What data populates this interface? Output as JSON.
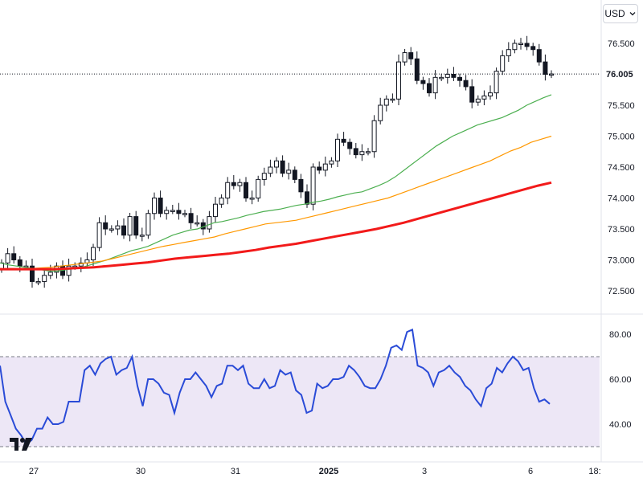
{
  "toolbar": {
    "currency_label": "USD"
  },
  "chart_data": [
    {
      "type": "candlestick",
      "title": "",
      "y_axis_ticks": [
        "76.500",
        "76.000",
        "75.500",
        "75.000",
        "74.500",
        "74.000",
        "73.500",
        "73.000",
        "72.500"
      ],
      "ylim": [
        72.2,
        77.0
      ],
      "x_axis_ticks": [
        "27",
        "30",
        "31",
        "2025",
        "3",
        "6",
        "18:"
      ],
      "last_price": 76.005,
      "last_price_label": "76.005",
      "grid": true,
      "close_series": [
        72.95,
        73.1,
        73.0,
        72.9,
        72.9,
        72.65,
        72.65,
        72.75,
        72.8,
        72.9,
        72.75,
        72.9,
        72.9,
        72.95,
        73.0,
        73.2,
        73.6,
        73.5,
        73.5,
        73.55,
        73.4,
        73.7,
        73.4,
        73.4,
        73.75,
        74.0,
        73.75,
        73.8,
        73.8,
        73.75,
        73.75,
        73.6,
        73.6,
        73.5,
        73.7,
        73.9,
        74.0,
        74.25,
        74.2,
        74.25,
        74.0,
        74.0,
        74.3,
        74.4,
        74.5,
        74.6,
        74.4,
        74.45,
        74.3,
        74.1,
        73.9,
        74.5,
        74.45,
        74.55,
        74.6,
        74.95,
        74.9,
        74.8,
        74.7,
        74.75,
        74.75,
        75.25,
        75.5,
        75.6,
        75.6,
        76.2,
        76.35,
        76.25,
        75.9,
        75.85,
        75.7,
        75.95,
        75.95,
        76.0,
        75.95,
        75.9,
        75.8,
        75.55,
        75.6,
        75.65,
        75.7,
        76.05,
        76.3,
        76.4,
        76.5,
        76.5,
        76.45,
        76.4,
        76.2,
        76.0,
        76.005
      ],
      "series": [
        {
          "name": "",
          "color": "#4caf50",
          "values": [
            72.95,
            72.92,
            72.9,
            72.88,
            72.86,
            72.84,
            72.82,
            72.82,
            72.84,
            72.86,
            72.88,
            72.92,
            72.96,
            73.0,
            73.05,
            73.1,
            73.15,
            73.18,
            73.22,
            73.28,
            73.34,
            73.4,
            73.44,
            73.48,
            73.5,
            73.55,
            73.6,
            73.62,
            73.65,
            73.68,
            73.72,
            73.75,
            73.78,
            73.8,
            73.82,
            73.85,
            73.88,
            73.9,
            73.93,
            73.95,
            73.98,
            74.02,
            74.05,
            74.08,
            74.1,
            74.15,
            74.2,
            74.26,
            74.34,
            74.44,
            74.54,
            74.64,
            74.74,
            74.84,
            74.92,
            75.0,
            75.06,
            75.12,
            75.18,
            75.22,
            75.26,
            75.3,
            75.36,
            75.42,
            75.5,
            75.56,
            75.62,
            75.67
          ]
        },
        {
          "name": "",
          "color": "#ff9800",
          "values": [
            72.86,
            72.86,
            72.86,
            72.86,
            72.87,
            72.88,
            72.9,
            72.92,
            72.94,
            72.96,
            72.98,
            73.02,
            73.06,
            73.1,
            73.14,
            73.18,
            73.22,
            73.25,
            73.28,
            73.31,
            73.34,
            73.37,
            73.42,
            73.46,
            73.5,
            73.54,
            73.58,
            73.6,
            73.62,
            73.64,
            73.68,
            73.72,
            73.76,
            73.8,
            73.84,
            73.88,
            73.92,
            73.96,
            74.0,
            74.06,
            74.12,
            74.18,
            74.24,
            74.3,
            74.36,
            74.42,
            74.48,
            74.54,
            74.6,
            74.68,
            74.76,
            74.82,
            74.9,
            74.95,
            75.0
          ]
        },
        {
          "name": "",
          "color": "#f21a1a",
          "values": [
            72.85,
            72.85,
            72.85,
            72.85,
            72.85,
            72.86,
            72.87,
            72.88,
            72.9,
            72.92,
            72.94,
            72.96,
            72.99,
            73.02,
            73.04,
            73.06,
            73.08,
            73.1,
            73.13,
            73.16,
            73.2,
            73.23,
            73.26,
            73.3,
            73.34,
            73.38,
            73.42,
            73.46,
            73.5,
            73.55,
            73.6,
            73.66,
            73.72,
            73.78,
            73.84,
            73.9,
            73.96,
            74.02,
            74.08,
            74.14,
            74.2,
            74.25
          ]
        }
      ]
    },
    {
      "type": "line",
      "title": "",
      "y_axis_ticks": [
        "80.00",
        "60.00",
        "40.00"
      ],
      "ylim": [
        34,
        84
      ],
      "band": [
        30,
        70
      ],
      "band_color": "#ede7f6",
      "series": [
        {
          "name": "",
          "color": "#2a4bd7",
          "values": [
            66,
            50,
            44,
            38,
            35,
            31,
            33,
            38,
            38,
            43,
            40,
            40,
            41,
            50,
            50,
            50,
            64,
            66,
            62,
            67,
            69,
            70,
            62,
            64,
            65,
            70,
            57,
            48,
            60,
            60,
            58,
            54,
            53,
            45,
            54,
            60,
            60,
            63,
            60,
            57,
            52,
            57,
            58,
            66,
            66,
            64,
            66,
            58,
            56,
            56,
            60,
            56,
            57,
            64,
            62,
            63,
            55,
            53,
            45,
            46,
            58,
            56,
            57,
            60,
            60,
            61,
            66,
            64,
            61,
            57,
            56,
            56,
            60,
            66,
            74,
            75,
            73,
            81,
            82,
            66,
            65,
            63,
            57,
            63,
            64,
            66,
            63,
            61,
            57,
            55,
            51,
            48,
            56,
            58,
            65,
            63,
            67,
            70,
            68,
            64,
            65,
            56,
            50,
            51,
            49
          ]
        }
      ]
    }
  ]
}
